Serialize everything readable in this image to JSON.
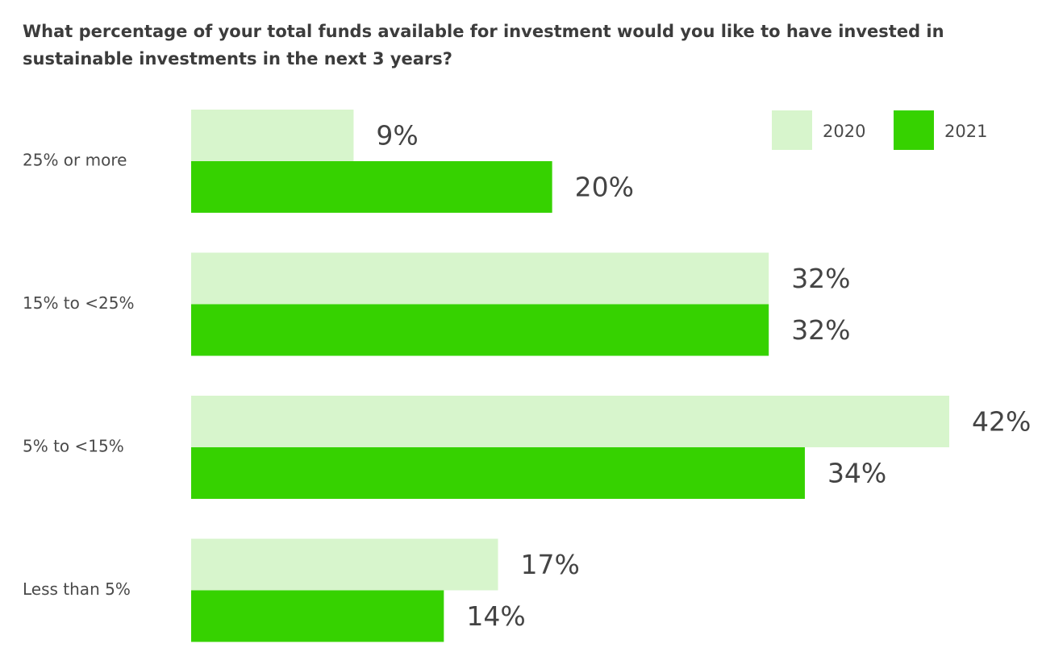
{
  "chart_data": {
    "type": "bar",
    "orientation": "horizontal",
    "title": "What percentage of your total funds available for investment would you like to have invested in sustainable investments in the next 3 years?",
    "categories": [
      "25% or more",
      "15% to <25%",
      "5% to <15%",
      "Less than 5%"
    ],
    "series": [
      {
        "name": "2020",
        "color": "#d7f5cc",
        "values": [
          9,
          32,
          42,
          17
        ],
        "value_labels": [
          "9%",
          "32%",
          "42%",
          "17%"
        ]
      },
      {
        "name": "2021",
        "color": "#36d200",
        "values": [
          20,
          32,
          34,
          14
        ],
        "value_labels": [
          "20%",
          "32%",
          "34%",
          "14%"
        ]
      }
    ],
    "legend": "upper right"
  }
}
